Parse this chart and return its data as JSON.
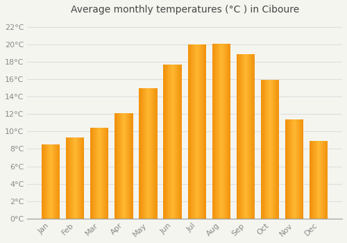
{
  "title": "Average monthly temperatures (°C ) in Ciboure",
  "months": [
    "Jan",
    "Feb",
    "Mar",
    "Apr",
    "May",
    "Jun",
    "Jul",
    "Aug",
    "Sep",
    "Oct",
    "Nov",
    "Dec"
  ],
  "values": [
    8.5,
    9.3,
    10.4,
    12.1,
    15.0,
    17.7,
    20.0,
    20.1,
    18.9,
    15.9,
    11.4,
    8.9
  ],
  "bar_color_center": "#FFB732",
  "bar_color_edge": "#F0900A",
  "ylim": [
    0,
    23
  ],
  "yticks": [
    0,
    2,
    4,
    6,
    8,
    10,
    12,
    14,
    16,
    18,
    20,
    22
  ],
  "background_color": "#f5f5f0",
  "plot_bg_color": "#f5f5f0",
  "grid_color": "#dddddd",
  "title_fontsize": 10,
  "tick_fontsize": 8,
  "tick_label_color": "#888888",
  "title_color": "#444444",
  "bar_width": 0.75
}
